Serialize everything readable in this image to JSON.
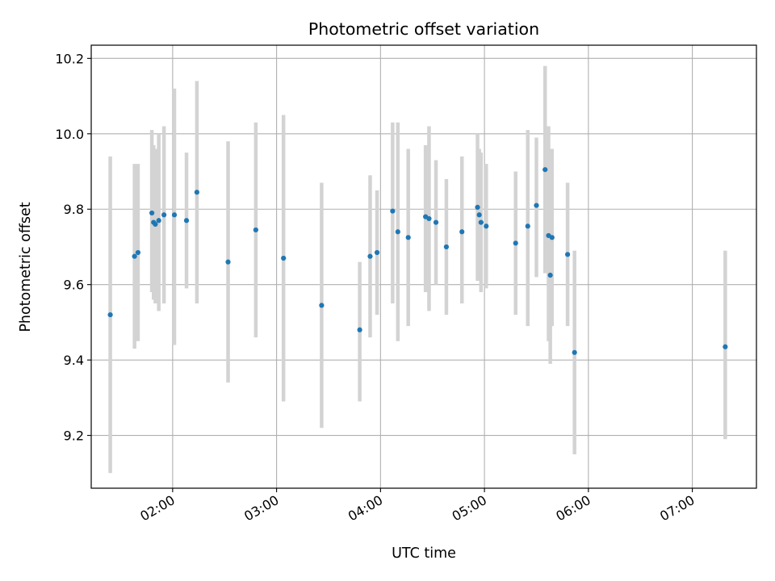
{
  "chart_data": {
    "type": "scatter",
    "title": "Photometric offset variation",
    "xlabel": "UTC time",
    "ylabel": "Photometric offset",
    "x_ticks": [
      {
        "value": "02:00",
        "label": "02:00"
      },
      {
        "value": "03:00",
        "label": "03:00"
      },
      {
        "value": "04:00",
        "label": "04:00"
      },
      {
        "value": "05:00",
        "label": "05:00"
      },
      {
        "value": "06:00",
        "label": "06:00"
      },
      {
        "value": "07:00",
        "label": "07:00"
      }
    ],
    "y_ticks": [
      {
        "value": 9.2,
        "label": "9.2"
      },
      {
        "value": 9.4,
        "label": "9.4"
      },
      {
        "value": 9.6,
        "label": "9.6"
      },
      {
        "value": 9.8,
        "label": "9.8"
      },
      {
        "value": 10.0,
        "label": "10.0"
      },
      {
        "value": 10.2,
        "label": "10.2"
      }
    ],
    "xlim": [
      "01:13",
      "07:37"
    ],
    "ylim": [
      9.06,
      10.235
    ],
    "grid": true,
    "colors": {
      "point": "#1f77b4",
      "errorbar": "#d3d3d3",
      "grid": "#b0b0b0"
    },
    "points": [
      {
        "x": "01:24",
        "y": 9.52,
        "ylo": 9.1,
        "yhi": 9.94
      },
      {
        "x": "01:38",
        "y": 9.675,
        "ylo": 9.43,
        "yhi": 9.92
      },
      {
        "x": "01:40",
        "y": 9.685,
        "ylo": 9.45,
        "yhi": 9.92
      },
      {
        "x": "01:48",
        "y": 9.79,
        "ylo": 9.58,
        "yhi": 10.01
      },
      {
        "x": "01:49",
        "y": 9.765,
        "ylo": 9.56,
        "yhi": 9.97
      },
      {
        "x": "01:50",
        "y": 9.76,
        "ylo": 9.55,
        "yhi": 9.96
      },
      {
        "x": "01:52",
        "y": 9.77,
        "ylo": 9.53,
        "yhi": 10.0
      },
      {
        "x": "01:55",
        "y": 9.785,
        "ylo": 9.55,
        "yhi": 10.02
      },
      {
        "x": "02:01",
        "y": 9.785,
        "ylo": 9.44,
        "yhi": 10.12
      },
      {
        "x": "02:08",
        "y": 9.77,
        "ylo": 9.59,
        "yhi": 9.95
      },
      {
        "x": "02:14",
        "y": 9.845,
        "ylo": 9.55,
        "yhi": 10.14
      },
      {
        "x": "02:32",
        "y": 9.66,
        "ylo": 9.34,
        "yhi": 9.98
      },
      {
        "x": "02:48",
        "y": 9.745,
        "ylo": 9.46,
        "yhi": 10.03
      },
      {
        "x": "03:04",
        "y": 9.67,
        "ylo": 9.29,
        "yhi": 10.05
      },
      {
        "x": "03:26",
        "y": 9.545,
        "ylo": 9.22,
        "yhi": 9.87
      },
      {
        "x": "03:48",
        "y": 9.48,
        "ylo": 9.29,
        "yhi": 9.66
      },
      {
        "x": "03:54",
        "y": 9.675,
        "ylo": 9.46,
        "yhi": 9.89
      },
      {
        "x": "03:58",
        "y": 9.685,
        "ylo": 9.52,
        "yhi": 9.85
      },
      {
        "x": "04:07",
        "y": 9.795,
        "ylo": 9.55,
        "yhi": 10.03
      },
      {
        "x": "04:10",
        "y": 9.74,
        "ylo": 9.45,
        "yhi": 10.03
      },
      {
        "x": "04:16",
        "y": 9.725,
        "ylo": 9.49,
        "yhi": 9.96
      },
      {
        "x": "04:26",
        "y": 9.78,
        "ylo": 9.58,
        "yhi": 9.97
      },
      {
        "x": "04:28",
        "y": 9.775,
        "ylo": 9.53,
        "yhi": 10.02
      },
      {
        "x": "04:32",
        "y": 9.765,
        "ylo": 9.6,
        "yhi": 9.93
      },
      {
        "x": "04:38",
        "y": 9.7,
        "ylo": 9.52,
        "yhi": 9.88
      },
      {
        "x": "04:47",
        "y": 9.74,
        "ylo": 9.55,
        "yhi": 9.94
      },
      {
        "x": "04:56",
        "y": 9.805,
        "ylo": 9.61,
        "yhi": 10.0
      },
      {
        "x": "04:57",
        "y": 9.785,
        "ylo": 9.61,
        "yhi": 9.96
      },
      {
        "x": "04:58",
        "y": 9.765,
        "ylo": 9.58,
        "yhi": 9.95
      },
      {
        "x": "05:01",
        "y": 9.755,
        "ylo": 9.59,
        "yhi": 9.92
      },
      {
        "x": "05:18",
        "y": 9.71,
        "ylo": 9.52,
        "yhi": 9.9
      },
      {
        "x": "05:25",
        "y": 9.755,
        "ylo": 9.49,
        "yhi": 10.01
      },
      {
        "x": "05:30",
        "y": 9.81,
        "ylo": 9.62,
        "yhi": 9.99
      },
      {
        "x": "05:35",
        "y": 9.905,
        "ylo": 9.63,
        "yhi": 10.18
      },
      {
        "x": "05:37",
        "y": 9.73,
        "ylo": 9.45,
        "yhi": 10.02
      },
      {
        "x": "05:38",
        "y": 9.625,
        "ylo": 9.39,
        "yhi": 9.86
      },
      {
        "x": "05:39",
        "y": 9.725,
        "ylo": 9.49,
        "yhi": 9.96
      },
      {
        "x": "05:48",
        "y": 9.68,
        "ylo": 9.49,
        "yhi": 9.87
      },
      {
        "x": "05:52",
        "y": 9.42,
        "ylo": 9.15,
        "yhi": 9.69
      },
      {
        "x": "07:19",
        "y": 9.435,
        "ylo": 9.19,
        "yhi": 9.69
      }
    ]
  }
}
